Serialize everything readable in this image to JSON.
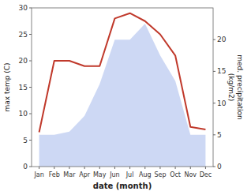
{
  "chart_data": {
    "type": "line",
    "xlabel": "date (month)",
    "ylabel": "max temp (C)",
    "y2label": "med. precipitation\n(kg/m2)",
    "categories": [
      "Jan",
      "Feb",
      "Mar",
      "Apr",
      "May",
      "Jun",
      "Jul",
      "Aug",
      "Sep",
      "Oct",
      "Nov",
      "Dec"
    ],
    "series": [
      {
        "type": "area",
        "axis": "y2",
        "color": "#b8c8f0",
        "values": [
          5.0,
          5.0,
          5.5,
          8.0,
          13.0,
          20.0,
          20.0,
          22.5,
          17.5,
          13.5,
          5.0,
          5.0
        ]
      },
      {
        "type": "line",
        "color": "#c0392b",
        "values": [
          6.5,
          20.0,
          20.0,
          19.0,
          19.0,
          28.0,
          29.0,
          27.5,
          25.0,
          21.0,
          7.5,
          7.0
        ]
      }
    ],
    "ylim": [
      0,
      30
    ],
    "yticks": [
      0,
      5,
      10,
      15,
      20,
      25,
      30
    ],
    "y2lim": [
      0,
      25
    ],
    "y2ticks": [
      0,
      5,
      10,
      15,
      20
    ],
    "grid": false
  }
}
